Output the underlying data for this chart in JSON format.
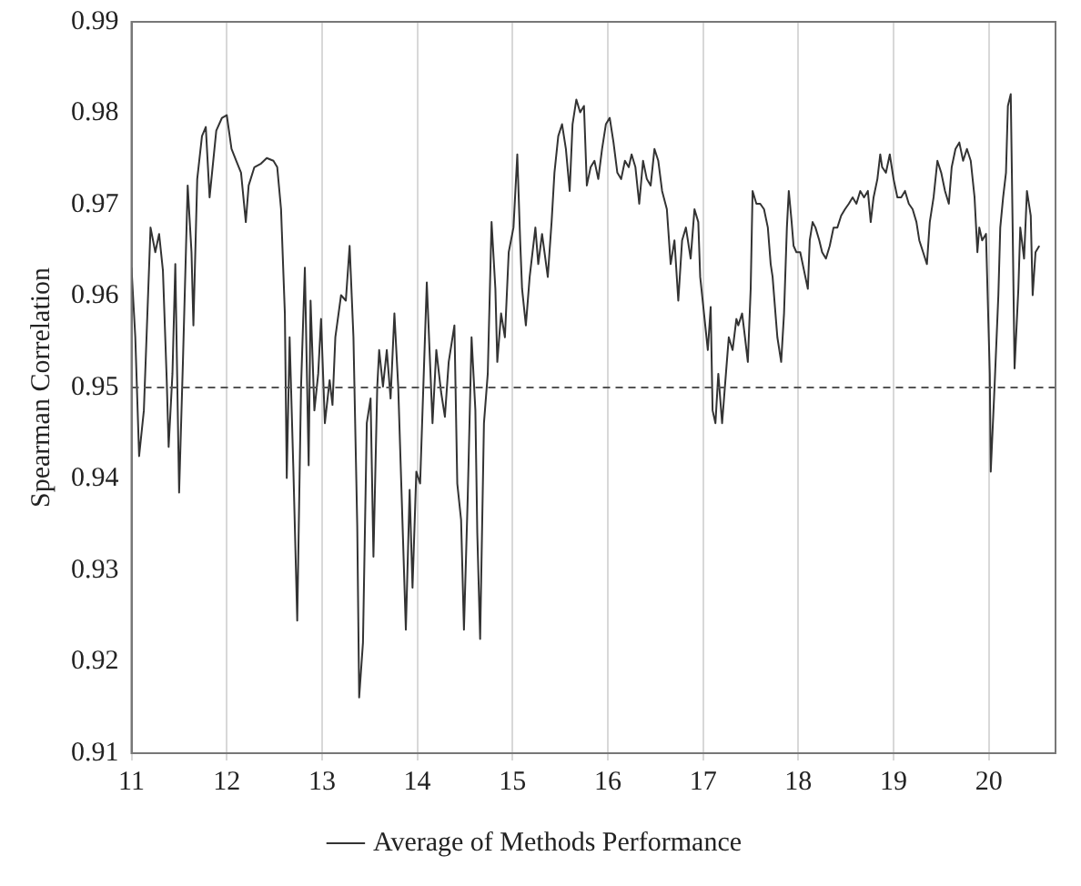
{
  "chart_data": {
    "type": "line",
    "ylabel": "Spearman Correlation",
    "xlim": [
      11,
      20.7
    ],
    "xticks": [
      11,
      12,
      13,
      14,
      15,
      16,
      17,
      18,
      19,
      20
    ],
    "ylim": [
      0.91,
      0.99
    ],
    "yticks": [
      0.91,
      0.92,
      0.93,
      0.94,
      0.95,
      0.96,
      0.97,
      0.98,
      0.99
    ],
    "grid": "x",
    "legend": "bottom",
    "marker": "none",
    "line_style": "solid",
    "ref_lines": [
      {
        "axis": "y",
        "value": 0.95,
        "color": "#555555",
        "line_style": "dashed"
      }
    ],
    "series": [
      {
        "name": "Average of Methods Performance",
        "color": "#333333",
        "x": [
          11.0,
          11.04,
          11.08,
          11.13,
          11.2,
          11.25,
          11.29,
          11.33,
          11.37,
          11.39,
          11.43,
          11.46,
          11.5,
          11.54,
          11.59,
          11.63,
          11.65,
          11.69,
          11.74,
          11.78,
          11.82,
          11.89,
          11.95,
          12.0,
          12.05,
          12.1,
          12.15,
          12.2,
          12.23,
          12.29,
          12.36,
          12.42,
          12.49,
          12.53,
          12.57,
          12.61,
          12.63,
          12.66,
          12.7,
          12.74,
          12.78,
          12.82,
          12.86,
          12.88,
          12.92,
          12.96,
          12.99,
          13.03,
          13.08,
          13.11,
          13.14,
          13.2,
          13.25,
          13.29,
          13.33,
          13.37,
          13.39,
          13.43,
          13.47,
          13.51,
          13.54,
          13.58,
          13.6,
          13.64,
          13.68,
          13.72,
          13.76,
          13.8,
          13.85,
          13.88,
          13.92,
          13.95,
          13.99,
          14.03,
          14.1,
          14.16,
          14.2,
          14.25,
          14.29,
          14.33,
          14.39,
          14.42,
          14.46,
          14.49,
          14.53,
          14.57,
          14.61,
          14.63,
          14.66,
          14.7,
          14.74,
          14.78,
          14.82,
          14.84,
          14.88,
          14.92,
          14.96,
          15.01,
          15.05,
          15.08,
          15.1,
          15.14,
          15.18,
          15.24,
          15.27,
          15.31,
          15.37,
          15.41,
          15.44,
          15.48,
          15.52,
          15.56,
          15.6,
          15.63,
          15.67,
          15.71,
          15.75,
          15.78,
          15.82,
          15.86,
          15.9,
          15.94,
          15.98,
          16.02,
          16.06,
          16.1,
          16.14,
          16.18,
          16.22,
          16.25,
          16.29,
          16.33,
          16.37,
          16.41,
          16.45,
          16.49,
          16.53,
          16.57,
          16.62,
          16.66,
          16.7,
          16.74,
          16.78,
          16.82,
          16.87,
          16.91,
          16.95,
          16.97,
          17.01,
          17.05,
          17.08,
          17.1,
          17.13,
          17.16,
          17.2,
          17.24,
          17.27,
          17.31,
          17.35,
          17.37,
          17.41,
          17.44,
          17.47,
          17.5,
          17.52,
          17.56,
          17.6,
          17.64,
          17.68,
          17.71,
          17.73,
          17.76,
          17.78,
          17.82,
          17.85,
          17.88,
          17.9,
          17.93,
          17.95,
          17.98,
          18.02,
          18.06,
          18.1,
          18.12,
          18.15,
          18.18,
          18.22,
          18.25,
          18.29,
          18.33,
          18.37,
          18.41,
          18.45,
          18.49,
          18.53,
          18.57,
          18.61,
          18.65,
          18.69,
          18.73,
          18.76,
          18.79,
          18.83,
          18.86,
          18.88,
          18.92,
          18.96,
          19.0,
          19.04,
          19.08,
          19.12,
          19.16,
          19.2,
          19.24,
          19.27,
          19.31,
          19.35,
          19.38,
          19.42,
          19.46,
          19.5,
          19.54,
          19.58,
          19.61,
          19.65,
          19.69,
          19.73,
          19.77,
          19.81,
          19.85,
          19.88,
          19.9,
          19.93,
          19.97,
          20.01,
          20.02,
          20.06,
          20.1,
          20.12,
          20.15,
          20.18,
          20.2,
          20.23,
          20.25,
          20.27,
          20.31,
          20.33,
          20.37,
          20.4,
          20.44,
          20.46,
          20.49,
          20.53
        ],
        "values": [
          0.9631,
          0.9555,
          0.9425,
          0.9475,
          0.9675,
          0.9648,
          0.9668,
          0.9628,
          0.9508,
          0.9435,
          0.9515,
          0.9635,
          0.9385,
          0.9528,
          0.9721,
          0.9648,
          0.9568,
          0.9728,
          0.9775,
          0.9785,
          0.9708,
          0.9781,
          0.9795,
          0.9798,
          0.9761,
          0.9748,
          0.9735,
          0.9681,
          0.9721,
          0.9741,
          0.9745,
          0.9751,
          0.9748,
          0.9741,
          0.9695,
          0.9581,
          0.9401,
          0.9555,
          0.9408,
          0.9245,
          0.9501,
          0.9631,
          0.9415,
          0.9595,
          0.9475,
          0.9515,
          0.9575,
          0.9461,
          0.9508,
          0.9481,
          0.9555,
          0.9601,
          0.9595,
          0.9655,
          0.9555,
          0.9348,
          0.9161,
          0.9221,
          0.9461,
          0.9488,
          0.9315,
          0.9501,
          0.9541,
          0.9501,
          0.9541,
          0.9488,
          0.9581,
          0.9501,
          0.9335,
          0.9235,
          0.9388,
          0.9281,
          0.9408,
          0.9395,
          0.9615,
          0.9461,
          0.9541,
          0.9495,
          0.9468,
          0.9528,
          0.9568,
          0.9395,
          0.9355,
          0.9235,
          0.9381,
          0.9555,
          0.9475,
          0.9341,
          0.9225,
          0.9461,
          0.9515,
          0.9681,
          0.9608,
          0.9528,
          0.9581,
          0.9555,
          0.9648,
          0.9675,
          0.9755,
          0.9661,
          0.9608,
          0.9568,
          0.9621,
          0.9675,
          0.9635,
          0.9668,
          0.9621,
          0.9681,
          0.9735,
          0.9775,
          0.9788,
          0.9761,
          0.9715,
          0.9788,
          0.9815,
          0.9801,
          0.9808,
          0.9721,
          0.9741,
          0.9748,
          0.9728,
          0.9761,
          0.9788,
          0.9795,
          0.9768,
          0.9735,
          0.9728,
          0.9748,
          0.9741,
          0.9755,
          0.9741,
          0.9701,
          0.9748,
          0.9728,
          0.9721,
          0.9761,
          0.9748,
          0.9715,
          0.9695,
          0.9635,
          0.9661,
          0.9595,
          0.9661,
          0.9675,
          0.9641,
          0.9695,
          0.9681,
          0.9621,
          0.9581,
          0.9541,
          0.9588,
          0.9475,
          0.9461,
          0.9515,
          0.9461,
          0.9515,
          0.9555,
          0.9541,
          0.9575,
          0.9568,
          0.9581,
          0.9555,
          0.9528,
          0.9608,
          0.9715,
          0.9701,
          0.9701,
          0.9695,
          0.9675,
          0.9635,
          0.9621,
          0.9581,
          0.9555,
          0.9528,
          0.9581,
          0.9675,
          0.9715,
          0.9681,
          0.9655,
          0.9648,
          0.9648,
          0.9628,
          0.9608,
          0.9661,
          0.9681,
          0.9675,
          0.9661,
          0.9648,
          0.9641,
          0.9655,
          0.9675,
          0.9675,
          0.9688,
          0.9695,
          0.9701,
          0.9708,
          0.9701,
          0.9715,
          0.9708,
          0.9715,
          0.9681,
          0.9708,
          0.9728,
          0.9755,
          0.9741,
          0.9735,
          0.9755,
          0.9728,
          0.9708,
          0.9708,
          0.9715,
          0.9701,
          0.9695,
          0.9681,
          0.9661,
          0.9648,
          0.9635,
          0.9681,
          0.9708,
          0.9748,
          0.9735,
          0.9715,
          0.9701,
          0.9741,
          0.9761,
          0.9768,
          0.9748,
          0.9761,
          0.9748,
          0.9708,
          0.9648,
          0.9675,
          0.9661,
          0.9668,
          0.9515,
          0.9408,
          0.9501,
          0.9601,
          0.9675,
          0.9708,
          0.9735,
          0.9808,
          0.9821,
          0.9675,
          0.9521,
          0.9608,
          0.9675,
          0.9641,
          0.9715,
          0.9688,
          0.9601,
          0.9648,
          0.9655
        ]
      }
    ]
  }
}
